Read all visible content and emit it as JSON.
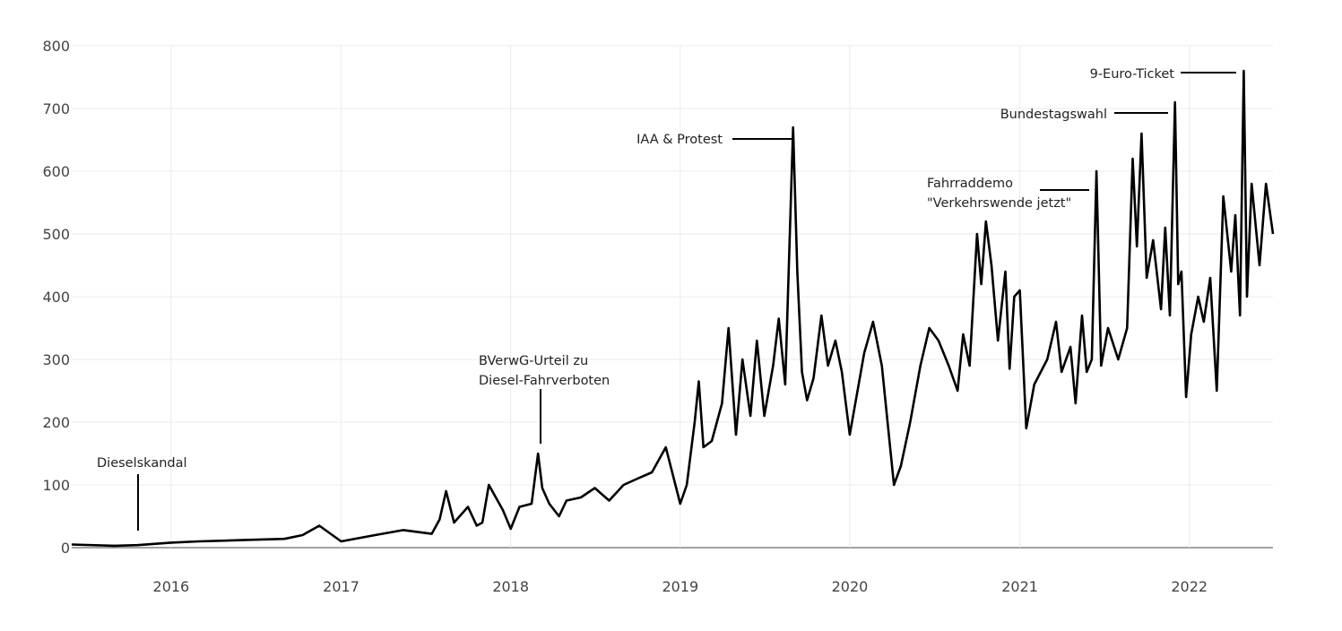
{
  "chart_data": {
    "type": "line",
    "title": "",
    "xlabel": "",
    "ylabel": "",
    "xlim": [
      "2015-06-01",
      "2022-06-30"
    ],
    "ylim": [
      0,
      800
    ],
    "grid": true,
    "legend": "none",
    "colors": {
      "line": "#000000",
      "grid": "#ebebeb",
      "zero_line": "#444444"
    },
    "y_ticks": [
      0,
      100,
      200,
      300,
      400,
      500,
      600,
      700,
      800
    ],
    "x_ticks": [
      "2016",
      "2017",
      "2018",
      "2019",
      "2020",
      "2021",
      "2022"
    ],
    "series": [
      {
        "x": [
          "2015-06-01",
          "2015-09-01",
          "2015-10-20",
          "2016-01-01",
          "2016-03-01",
          "2016-06-01",
          "2016-09-01",
          "2016-10-10",
          "2016-11-15",
          "2017-01-01",
          "2017-03-15",
          "2017-05-15",
          "2017-07-15",
          "2017-08-01",
          "2017-08-15",
          "2017-09-01",
          "2017-10-01",
          "2017-10-20",
          "2017-11-01",
          "2017-11-15",
          "2017-12-15",
          "2018-01-01",
          "2018-01-20",
          "2018-02-15",
          "2018-03-01",
          "2018-03-10",
          "2018-03-25",
          "2018-04-15",
          "2018-05-01",
          "2018-06-01",
          "2018-07-01",
          "2018-08-01",
          "2018-09-01",
          "2018-10-01",
          "2018-11-01",
          "2018-12-01",
          "2019-01-01",
          "2019-01-15",
          "2019-02-01",
          "2019-02-10",
          "2019-02-20",
          "2019-03-10",
          "2019-04-01",
          "2019-04-15",
          "2019-05-01",
          "2019-05-15",
          "2019-06-01",
          "2019-06-15",
          "2019-07-01",
          "2019-07-20",
          "2019-08-01",
          "2019-08-15",
          "2019-09-01",
          "2019-09-10",
          "2019-09-20",
          "2019-10-01",
          "2019-10-15",
          "2019-11-01",
          "2019-11-15",
          "2019-12-01",
          "2019-12-15",
          "2020-01-01",
          "2020-02-01",
          "2020-02-20",
          "2020-03-10",
          "2020-03-25",
          "2020-04-05",
          "2020-04-20",
          "2020-05-10",
          "2020-06-01",
          "2020-06-20",
          "2020-07-10",
          "2020-08-01",
          "2020-08-20",
          "2020-09-01",
          "2020-09-15",
          "2020-10-01",
          "2020-10-10",
          "2020-10-20",
          "2020-11-01",
          "2020-11-15",
          "2020-12-01",
          "2020-12-10",
          "2020-12-20",
          "2021-01-01",
          "2021-01-15",
          "2021-02-01",
          "2021-03-01",
          "2021-03-20",
          "2021-04-01",
          "2021-04-20",
          "2021-05-01",
          "2021-05-15",
          "2021-05-25",
          "2021-06-05",
          "2021-06-15",
          "2021-06-25",
          "2021-07-10",
          "2021-08-01",
          "2021-08-20",
          "2021-09-01",
          "2021-09-10",
          "2021-09-20",
          "2021-10-01",
          "2021-10-15",
          "2021-11-01",
          "2021-11-10",
          "2021-11-20",
          "2021-12-01",
          "2021-12-08",
          "2021-12-15",
          "2021-12-25",
          "2022-01-05",
          "2022-01-20",
          "2022-02-01",
          "2022-02-15",
          "2022-03-01",
          "2022-03-15",
          "2022-04-01",
          "2022-04-10",
          "2022-04-20",
          "2022-04-28",
          "2022-05-05",
          "2022-05-15",
          "2022-06-01",
          "2022-06-15",
          "2022-06-30"
        ],
        "values": [
          5,
          3,
          4,
          8,
          10,
          12,
          14,
          20,
          35,
          10,
          20,
          28,
          22,
          45,
          90,
          40,
          65,
          35,
          40,
          100,
          60,
          30,
          65,
          70,
          150,
          95,
          70,
          50,
          75,
          80,
          95,
          75,
          100,
          110,
          120,
          160,
          70,
          100,
          200,
          265,
          160,
          170,
          230,
          350,
          180,
          300,
          210,
          330,
          210,
          290,
          365,
          260,
          670,
          440,
          280,
          235,
          270,
          370,
          290,
          330,
          280,
          180,
          310,
          360,
          290,
          180,
          100,
          130,
          200,
          290,
          350,
          330,
          290,
          250,
          340,
          290,
          500,
          420,
          520,
          450,
          330,
          440,
          285,
          400,
          410,
          190,
          260,
          300,
          360,
          280,
          320,
          230,
          370,
          280,
          300,
          600,
          290,
          350,
          300,
          350,
          620,
          480,
          660,
          430,
          490,
          380,
          510,
          370,
          710,
          420,
          440,
          240,
          340,
          400,
          360,
          430,
          250,
          560,
          440,
          530,
          370,
          760,
          400,
          580,
          450,
          580,
          500
        ]
      }
    ],
    "annotations": [
      {
        "date": "2015-10-20",
        "lines": [
          "Dieselskandal"
        ]
      },
      {
        "date": "2018-03-10",
        "lines": [
          "BVerwG-Urteil zu",
          "Diesel-Fahrverboten"
        ]
      },
      {
        "date": "2019-09-10",
        "lines": [
          "IAA & Protest"
        ]
      },
      {
        "date": "2021-06-05",
        "lines": [
          "Fahrraddemo",
          "\"Verkehrswende jetzt\""
        ]
      },
      {
        "date": "2021-12-08",
        "lines": [
          "Bundestagswahl"
        ]
      },
      {
        "date": "2022-04-20",
        "lines": [
          "9-Euro-Ticket"
        ]
      }
    ]
  }
}
